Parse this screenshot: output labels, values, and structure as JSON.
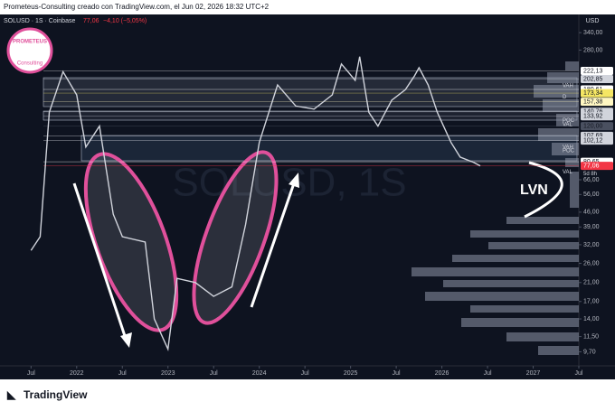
{
  "header": "Prometeus-Consulting creado con TradingView.com, el Jun 02, 2026 18:32 UTC+2",
  "footer": "TradingView",
  "logo": {
    "top": "PROMETEUS",
    "bottom": "Consulting"
  },
  "chart_data": {
    "type": "line",
    "symbol": "SOLUSD · 1S · Coinbase",
    "last_price": "77,06",
    "change": "−4,10 (−5,05%)",
    "currency": "USD",
    "watermark": "SOLUSD, 1S",
    "annotation": "LVN",
    "countdown": "5d 8h",
    "log_scale": true,
    "xlim": [
      2021.16,
      2027.5
    ],
    "xticks": [
      {
        "value": 2021.5,
        "label": "Jul"
      },
      {
        "value": 2022,
        "label": "2022"
      },
      {
        "value": 2022.5,
        "label": "Jul"
      },
      {
        "value": 2023,
        "label": "2023"
      },
      {
        "value": 2023.5,
        "label": "Jul"
      },
      {
        "value": 2024,
        "label": "2024"
      },
      {
        "value": 2024.5,
        "label": "Jul"
      },
      {
        "value": 2025,
        "label": "2025"
      },
      {
        "value": 2025.5,
        "label": "Jul"
      },
      {
        "value": 2026,
        "label": "2026"
      },
      {
        "value": 2026.5,
        "label": "Jul"
      },
      {
        "value": 2027,
        "label": "2027"
      },
      {
        "value": 2027.5,
        "label": "Jul"
      }
    ],
    "ylim": [
      8.3,
      400
    ],
    "yticks": [
      {
        "value": 340,
        "label": "340,00"
      },
      {
        "value": 280,
        "label": "280,00"
      },
      {
        "value": 66,
        "label": "66,00"
      },
      {
        "value": 56,
        "label": "56,00"
      },
      {
        "value": 46,
        "label": "46,00"
      },
      {
        "value": 39,
        "label": "39,00"
      },
      {
        "value": 32,
        "label": "32,00"
      },
      {
        "value": 26,
        "label": "26,00"
      },
      {
        "value": 21,
        "label": "21,00"
      },
      {
        "value": 17,
        "label": "17,00"
      },
      {
        "value": 14,
        "label": "14,00"
      },
      {
        "value": 11.5,
        "label": "11,50"
      },
      {
        "value": 9.7,
        "label": "9,70"
      }
    ],
    "levels": [
      {
        "value": 222.13,
        "label": "222,13",
        "color": "#ffffff"
      },
      {
        "value": 202.85,
        "label": "202,85",
        "color": "#d1d4dc"
      },
      {
        "value": 180.61,
        "label": "180,61",
        "color": "#ffffff"
      },
      {
        "value": 173.34,
        "label": "173,34",
        "color": "#f5e663"
      },
      {
        "value": 157.38,
        "label": "157,38",
        "color": "#fff7c2"
      },
      {
        "value": 140.76,
        "label": "140,76",
        "color": "#d1d4dc"
      },
      {
        "value": 133.92,
        "label": "133,92",
        "color": "#d1d4dc"
      },
      {
        "value": 120,
        "label": "120,00",
        "color": "#4a5060"
      },
      {
        "value": 107.69,
        "label": "107,69",
        "color": "#d1d4dc"
      },
      {
        "value": 102.12,
        "label": "102,12",
        "color": "#d1d4dc"
      },
      {
        "value": 80.65,
        "label": "80,65",
        "color": "#ffffff"
      },
      {
        "value": 77.06,
        "label": "77,06",
        "color": "#f23645"
      }
    ],
    "tags": [
      {
        "value": 188,
        "label": "VAH"
      },
      {
        "value": 166,
        "label": "D"
      },
      {
        "value": 128,
        "label": "POC"
      },
      {
        "value": 122,
        "label": "VAL"
      },
      {
        "value": 95,
        "label": "VAH"
      },
      {
        "value": 91,
        "label": "POC"
      },
      {
        "value": 72,
        "label": "VAL"
      }
    ],
    "x": [
      2021.5,
      2021.6,
      2021.7,
      2021.85,
      2022.0,
      2022.1,
      2022.25,
      2022.4,
      2022.5,
      2022.75,
      2022.85,
      2023.0,
      2023.1,
      2023.3,
      2023.5,
      2023.7,
      2023.85,
      2024.0,
      2024.2,
      2024.4,
      2024.6,
      2024.8,
      2024.9,
      2025.05,
      2025.1,
      2025.2,
      2025.3,
      2025.45,
      2025.6,
      2025.7,
      2025.75,
      2025.85,
      2025.95,
      2026.0,
      2026.1,
      2026.2,
      2026.35,
      2026.42
    ],
    "series": [
      {
        "name": "SOLUSD",
        "color": "#d1d4dc",
        "values": [
          30,
          35,
          140,
          220,
          170,
          95,
          120,
          45,
          35,
          33,
          14,
          10,
          22,
          21,
          18,
          20,
          40,
          100,
          190,
          150,
          145,
          170,
          240,
          200,
          260,
          140,
          120,
          160,
          180,
          210,
          230,
          190,
          140,
          125,
          100,
          85,
          80,
          77.06
        ]
      }
    ]
  }
}
